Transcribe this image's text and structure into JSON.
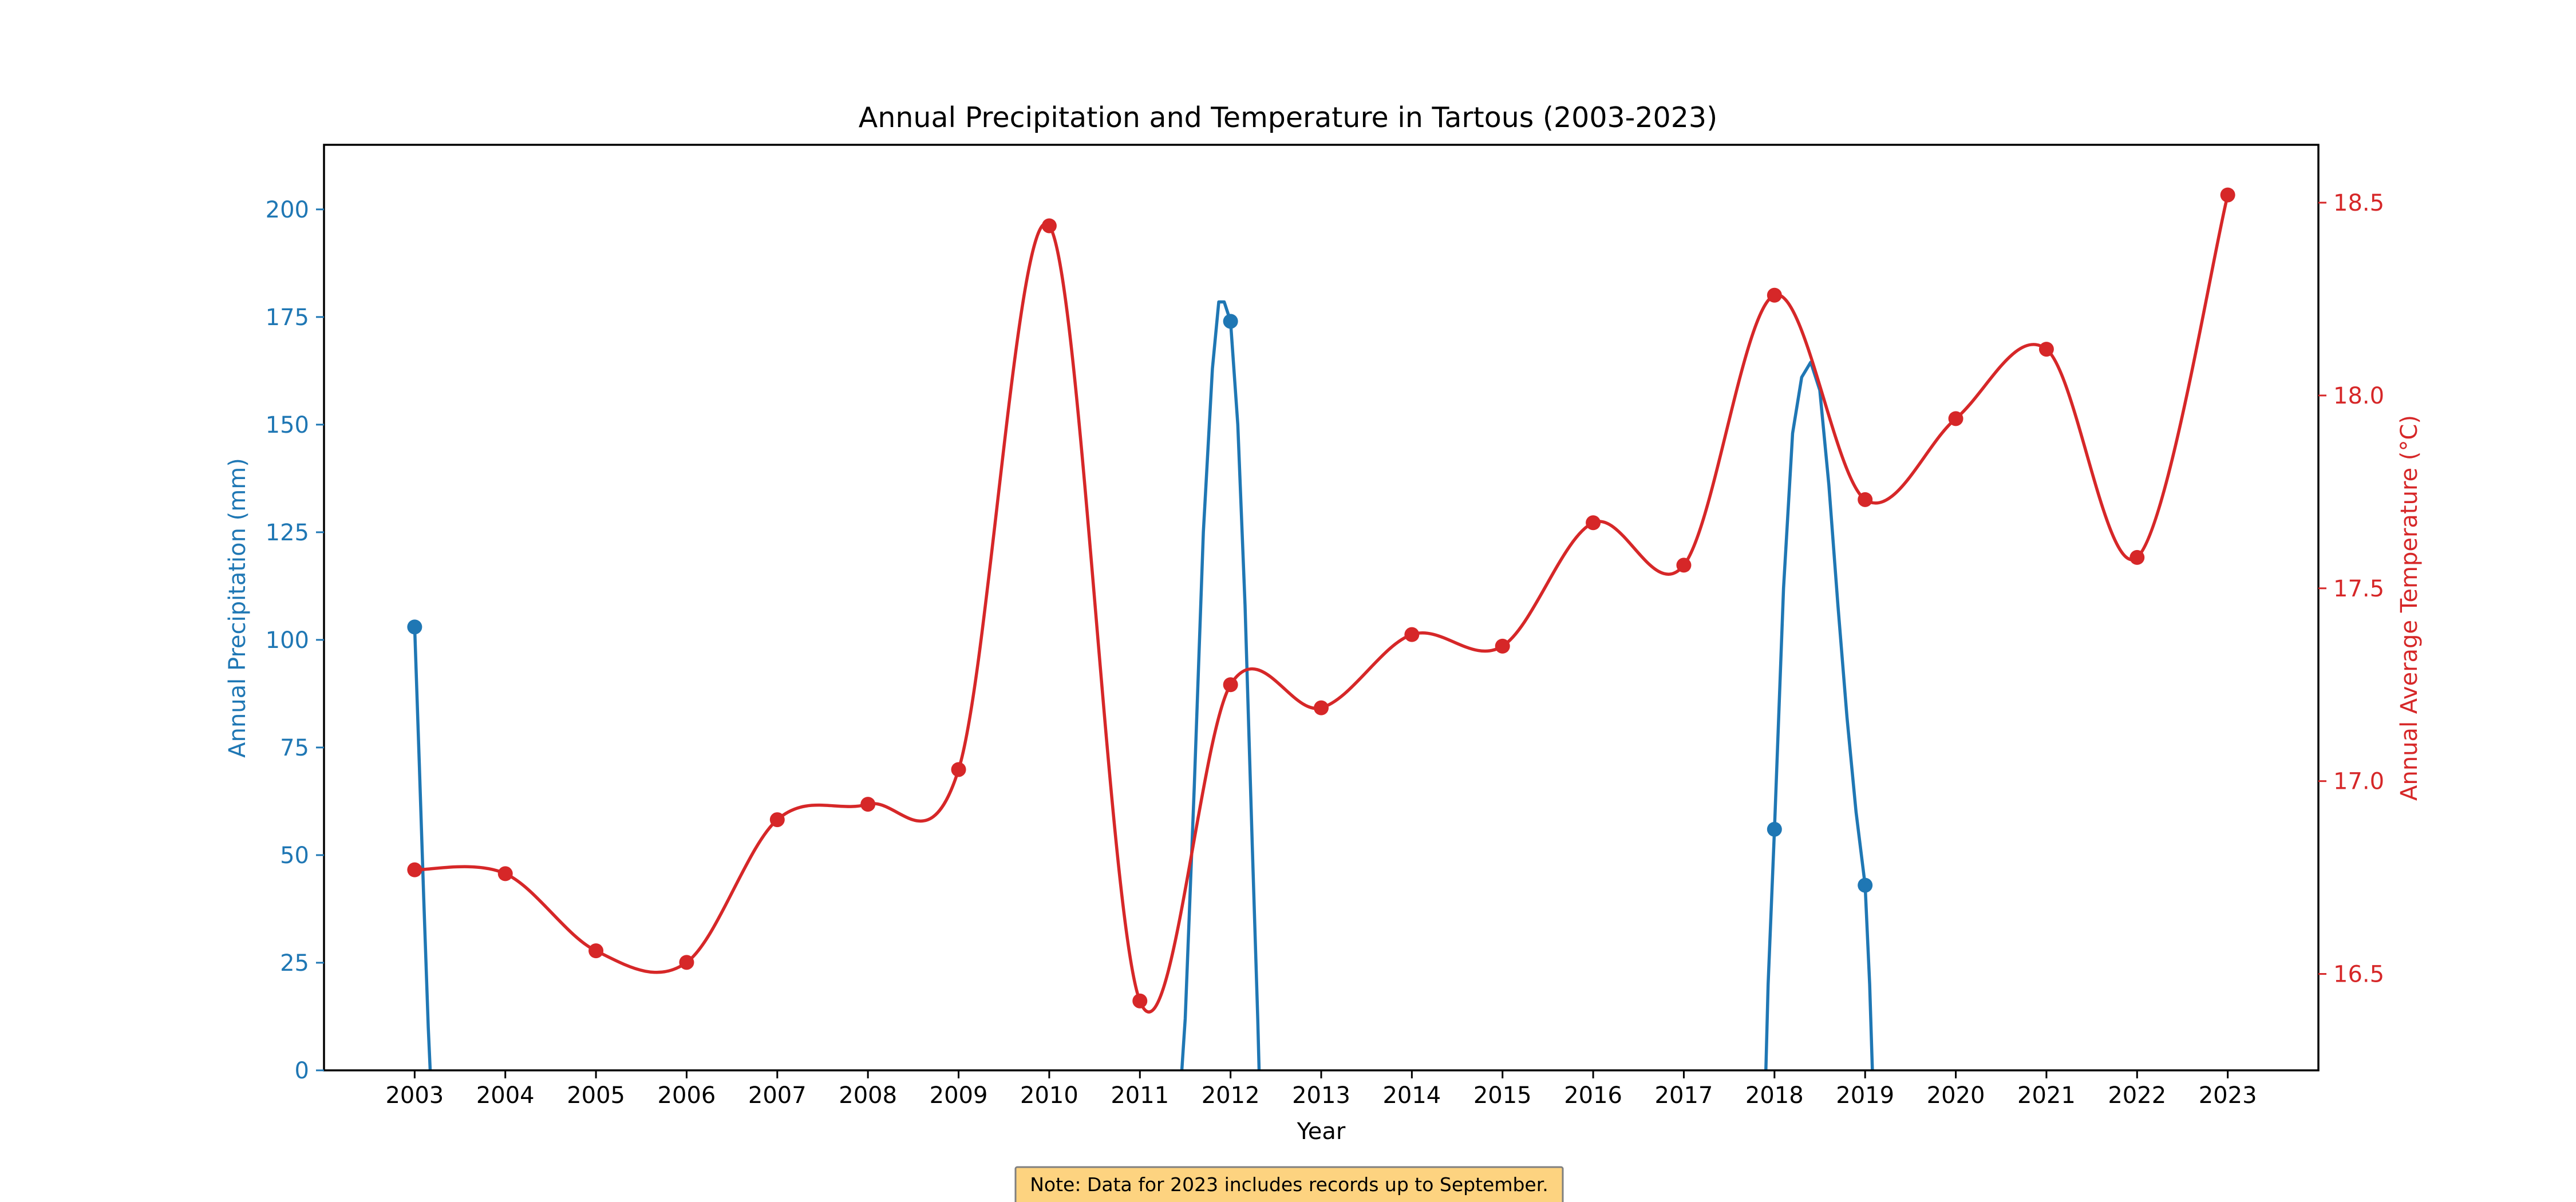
{
  "chart_data": {
    "type": "line",
    "title": "Annual Precipitation and Temperature in Tartous (2003-2023)",
    "xlabel": "Year",
    "ylabel_left": "Annual Precipitation (mm)",
    "ylabel_right": "Annual Average Temperature (°C)",
    "x": [
      2003,
      2004,
      2005,
      2006,
      2007,
      2008,
      2009,
      2010,
      2011,
      2012,
      2013,
      2014,
      2015,
      2016,
      2017,
      2018,
      2019,
      2020,
      2021,
      2022,
      2023
    ],
    "xlim": [
      2002,
      2024
    ],
    "ylim_left": [
      0,
      215
    ],
    "ylim_right": [
      16.25,
      18.65
    ],
    "yticks_left": [
      0,
      25,
      50,
      75,
      100,
      125,
      150,
      175,
      200
    ],
    "yticks_right": [
      16.5,
      17.0,
      17.5,
      18.0,
      18.5
    ],
    "series": [
      {
        "name": "Annual Precipitation (mm)",
        "axis": "left",
        "color": "#1f77b4",
        "points": [
          [
            2003,
            103
          ],
          [
            2012,
            174
          ],
          [
            2018,
            56
          ],
          [
            2019,
            43
          ]
        ],
        "curve": [
          [
            2003,
            103
          ],
          [
            2003.05,
            72
          ],
          [
            2003.1,
            40
          ],
          [
            2003.15,
            10
          ],
          [
            2003.18,
            -4
          ],
          [
            2011.45,
            -4
          ],
          [
            2011.5,
            12
          ],
          [
            2011.6,
            66
          ],
          [
            2011.7,
            125
          ],
          [
            2011.8,
            163
          ],
          [
            2011.87,
            178.5
          ],
          [
            2011.93,
            178.5
          ],
          [
            2012,
            174
          ],
          [
            2012.08,
            150
          ],
          [
            2012.16,
            108
          ],
          [
            2012.24,
            52
          ],
          [
            2012.3,
            12
          ],
          [
            2012.32,
            -4
          ],
          [
            2017.9,
            -4
          ],
          [
            2017.93,
            20
          ],
          [
            2018,
            56
          ],
          [
            2018.1,
            112
          ],
          [
            2018.2,
            148
          ],
          [
            2018.3,
            161
          ],
          [
            2018.4,
            164.5
          ],
          [
            2018.5,
            158
          ],
          [
            2018.6,
            136
          ],
          [
            2018.7,
            108
          ],
          [
            2018.8,
            82
          ],
          [
            2018.9,
            60
          ],
          [
            2019,
            43
          ],
          [
            2019.05,
            20
          ],
          [
            2019.08,
            0
          ],
          [
            2019.09,
            -4
          ]
        ]
      },
      {
        "name": "Annual Average Temperature (°C)",
        "axis": "right",
        "color": "#d62728",
        "values": [
          16.77,
          16.76,
          16.56,
          16.53,
          16.9,
          16.94,
          17.03,
          18.44,
          16.43,
          17.25,
          17.19,
          17.38,
          17.35,
          17.67,
          17.56,
          18.26,
          17.73,
          17.94,
          18.12,
          17.58,
          18.52
        ]
      }
    ],
    "note": "Note: Data for 2023 includes records up to September.",
    "note_box_color": "#fdd380",
    "grid": false
  }
}
